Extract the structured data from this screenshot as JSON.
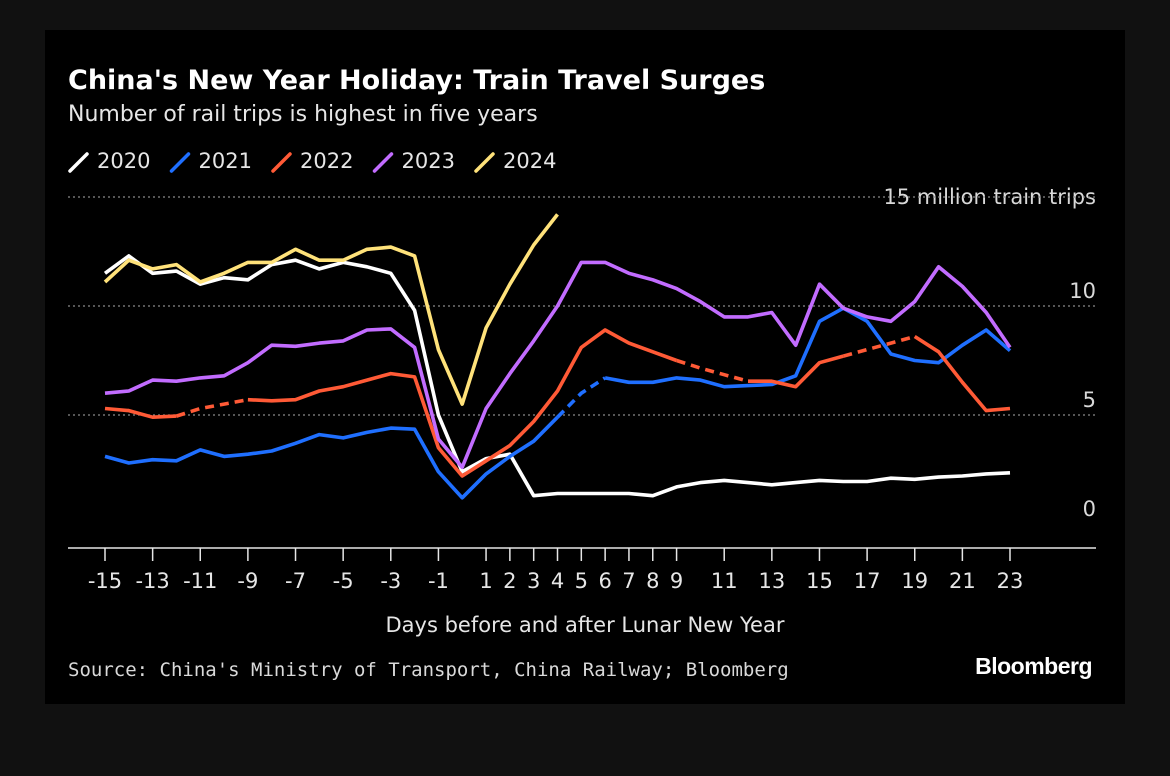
{
  "chart_data": {
    "type": "line",
    "title": "China's New Year Holiday: Train Travel Surges",
    "subtitle": "Number of rail trips is highest in five years",
    "ylabel": "15 million train trips",
    "xlabel": "Days before and after Lunar New Year",
    "ylim": [
      0,
      15
    ],
    "xlim": [
      -15,
      23
    ],
    "yticks": [
      {
        "value": 0,
        "label": "0"
      },
      {
        "value": 5,
        "label": "5"
      },
      {
        "value": 10,
        "label": "10"
      }
    ],
    "xticks": [
      {
        "value": -15,
        "label": "-15"
      },
      {
        "value": -13,
        "label": "-13"
      },
      {
        "value": -11,
        "label": "-11"
      },
      {
        "value": -9,
        "label": "-9"
      },
      {
        "value": -7,
        "label": "-7"
      },
      {
        "value": -5,
        "label": "-5"
      },
      {
        "value": -3,
        "label": "-3"
      },
      {
        "value": -1,
        "label": "-1"
      },
      {
        "value": 1,
        "label": "1"
      },
      {
        "value": 2,
        "label": "2"
      },
      {
        "value": 3,
        "label": "3"
      },
      {
        "value": 4,
        "label": "4"
      },
      {
        "value": 5,
        "label": "5"
      },
      {
        "value": 6,
        "label": "6"
      },
      {
        "value": 7,
        "label": "7"
      },
      {
        "value": 8,
        "label": "8"
      },
      {
        "value": 9,
        "label": "9"
      },
      {
        "value": 11,
        "label": "11"
      },
      {
        "value": 13,
        "label": "13"
      },
      {
        "value": 15,
        "label": "15"
      },
      {
        "value": 17,
        "label": "17"
      },
      {
        "value": 19,
        "label": "19"
      },
      {
        "value": 21,
        "label": "21"
      },
      {
        "value": 23,
        "label": "23"
      }
    ],
    "series": [
      {
        "name": "2020",
        "color": "#ffffff",
        "segments": [
          {
            "dashed": false,
            "x": [
              -15,
              -14,
              -13,
              -12,
              -11,
              -10,
              -9,
              -8,
              -7,
              -6,
              -5,
              -4,
              -3,
              -2,
              -1,
              0,
              1,
              2,
              3,
              4,
              5,
              6,
              7,
              8,
              9,
              10,
              11,
              12,
              13,
              14,
              15,
              16,
              17,
              18,
              19,
              20,
              21,
              22,
              23
            ],
            "y": [
              11.5,
              12.3,
              11.5,
              11.6,
              11.0,
              11.3,
              11.2,
              11.9,
              12.1,
              11.7,
              12.0,
              11.8,
              11.5,
              9.8,
              5.0,
              2.4,
              3.0,
              3.2,
              1.3,
              1.4,
              1.4,
              1.4,
              1.4,
              1.3,
              1.7,
              1.9,
              2.0,
              1.9,
              1.8,
              1.9,
              2.0,
              1.95,
              1.95,
              2.1,
              2.05,
              2.15,
              2.2,
              2.3,
              2.35
            ]
          }
        ]
      },
      {
        "name": "2021",
        "color": "#1f6fff",
        "segments": [
          {
            "dashed": false,
            "x": [
              -15,
              -14,
              -13,
              -12,
              -11,
              -10,
              -9,
              -8,
              -7,
              -6,
              -5,
              -4,
              -3,
              -2,
              -1,
              0,
              1,
              2,
              3,
              4
            ],
            "y": [
              3.1,
              2.8,
              2.95,
              2.9,
              3.4,
              3.1,
              3.2,
              3.35,
              3.7,
              4.1,
              3.95,
              4.2,
              4.4,
              4.35,
              2.4,
              1.2,
              2.3,
              3.1,
              3.8,
              4.9
            ]
          },
          {
            "dashed": true,
            "x": [
              4,
              5,
              6
            ],
            "y": [
              4.9,
              6.0,
              6.7
            ]
          },
          {
            "dashed": false,
            "x": [
              6,
              7,
              8,
              9,
              10,
              11,
              12,
              13,
              14,
              15,
              16,
              17,
              18,
              19,
              20,
              21,
              22,
              23
            ],
            "y": [
              6.7,
              6.5,
              6.5,
              6.7,
              6.6,
              6.3,
              6.35,
              6.4,
              6.8,
              9.3,
              9.9,
              9.3,
              7.8,
              7.5,
              7.4,
              8.2,
              8.9,
              7.95
            ]
          }
        ]
      },
      {
        "name": "2022",
        "color": "#ff5a36",
        "segments": [
          {
            "dashed": false,
            "x": [
              -15,
              -14,
              -13,
              -12
            ],
            "y": [
              5.3,
              5.2,
              4.9,
              4.95
            ]
          },
          {
            "dashed": true,
            "x": [
              -12,
              -11,
              -10,
              -9
            ],
            "y": [
              4.95,
              5.3,
              5.5,
              5.7
            ]
          },
          {
            "dashed": false,
            "x": [
              -9,
              -8,
              -7,
              -6,
              -5,
              -4,
              -3,
              -2,
              -1,
              0,
              1,
              2,
              3,
              4,
              5,
              6,
              7,
              8,
              9
            ],
            "y": [
              5.7,
              5.65,
              5.7,
              6.1,
              6.3,
              6.6,
              6.9,
              6.75,
              3.5,
              2.2,
              2.9,
              3.6,
              4.7,
              6.1,
              8.1,
              8.9,
              8.3,
              7.9,
              7.5
            ]
          },
          {
            "dashed": true,
            "x": [
              9,
              10,
              11,
              12
            ],
            "y": [
              7.5,
              7.15,
              6.85,
              6.55
            ]
          },
          {
            "dashed": false,
            "x": [
              12,
              13,
              14,
              15,
              16
            ],
            "y": [
              6.55,
              6.55,
              6.3,
              7.4,
              7.7
            ]
          },
          {
            "dashed": true,
            "x": [
              16,
              17,
              18,
              19
            ],
            "y": [
              7.7,
              8.0,
              8.3,
              8.6
            ]
          },
          {
            "dashed": false,
            "x": [
              19,
              20,
              21,
              22,
              23
            ],
            "y": [
              8.6,
              7.9,
              6.5,
              5.2,
              5.3
            ]
          }
        ]
      },
      {
        "name": "2023",
        "color": "#c26cff",
        "segments": [
          {
            "dashed": false,
            "x": [
              -15,
              -14,
              -13,
              -12,
              -11,
              -10,
              -9,
              -8,
              -7,
              -6,
              -5,
              -4,
              -3,
              -2,
              -1,
              0,
              1,
              2,
              3,
              4,
              5,
              6,
              7,
              8,
              9,
              10,
              11,
              12,
              13,
              14,
              15,
              16,
              17,
              18,
              19,
              20,
              21,
              22,
              23
            ],
            "y": [
              6.0,
              6.1,
              6.6,
              6.55,
              6.7,
              6.8,
              7.4,
              8.2,
              8.15,
              8.3,
              8.4,
              8.9,
              8.95,
              8.1,
              3.9,
              2.6,
              5.3,
              6.9,
              8.4,
              10.0,
              12.0,
              12.0,
              11.5,
              11.2,
              10.8,
              10.2,
              9.5,
              9.5,
              9.7,
              8.2,
              11.0,
              9.9,
              9.5,
              9.3,
              10.2,
              11.8,
              10.9,
              9.7,
              8.1
            ]
          }
        ]
      },
      {
        "name": "2024",
        "color": "#ffe27a",
        "segments": [
          {
            "dashed": false,
            "x": [
              -15,
              -14,
              -13,
              -12,
              -11,
              -10,
              -9,
              -8,
              -7,
              -6,
              -5,
              -4,
              -3,
              -2,
              -1,
              0,
              1,
              2,
              3,
              4
            ],
            "y": [
              11.1,
              12.1,
              11.7,
              11.9,
              11.1,
              11.5,
              12.0,
              12.0,
              12.6,
              12.1,
              12.1,
              12.6,
              12.7,
              12.3,
              8.0,
              5.5,
              9.0,
              11.0,
              12.8,
              14.2
            ]
          }
        ]
      }
    ],
    "legend": [
      {
        "label": "2020",
        "color": "#ffffff"
      },
      {
        "label": "2021",
        "color": "#1f6fff"
      },
      {
        "label": "2022",
        "color": "#ff5a36"
      },
      {
        "label": "2023",
        "color": "#c26cff"
      },
      {
        "label": "2024",
        "color": "#ffe27a"
      }
    ]
  },
  "footer": {
    "source": "Source: China's Ministry of Transport, China Railway; Bloomberg",
    "brand": "Bloomberg"
  }
}
